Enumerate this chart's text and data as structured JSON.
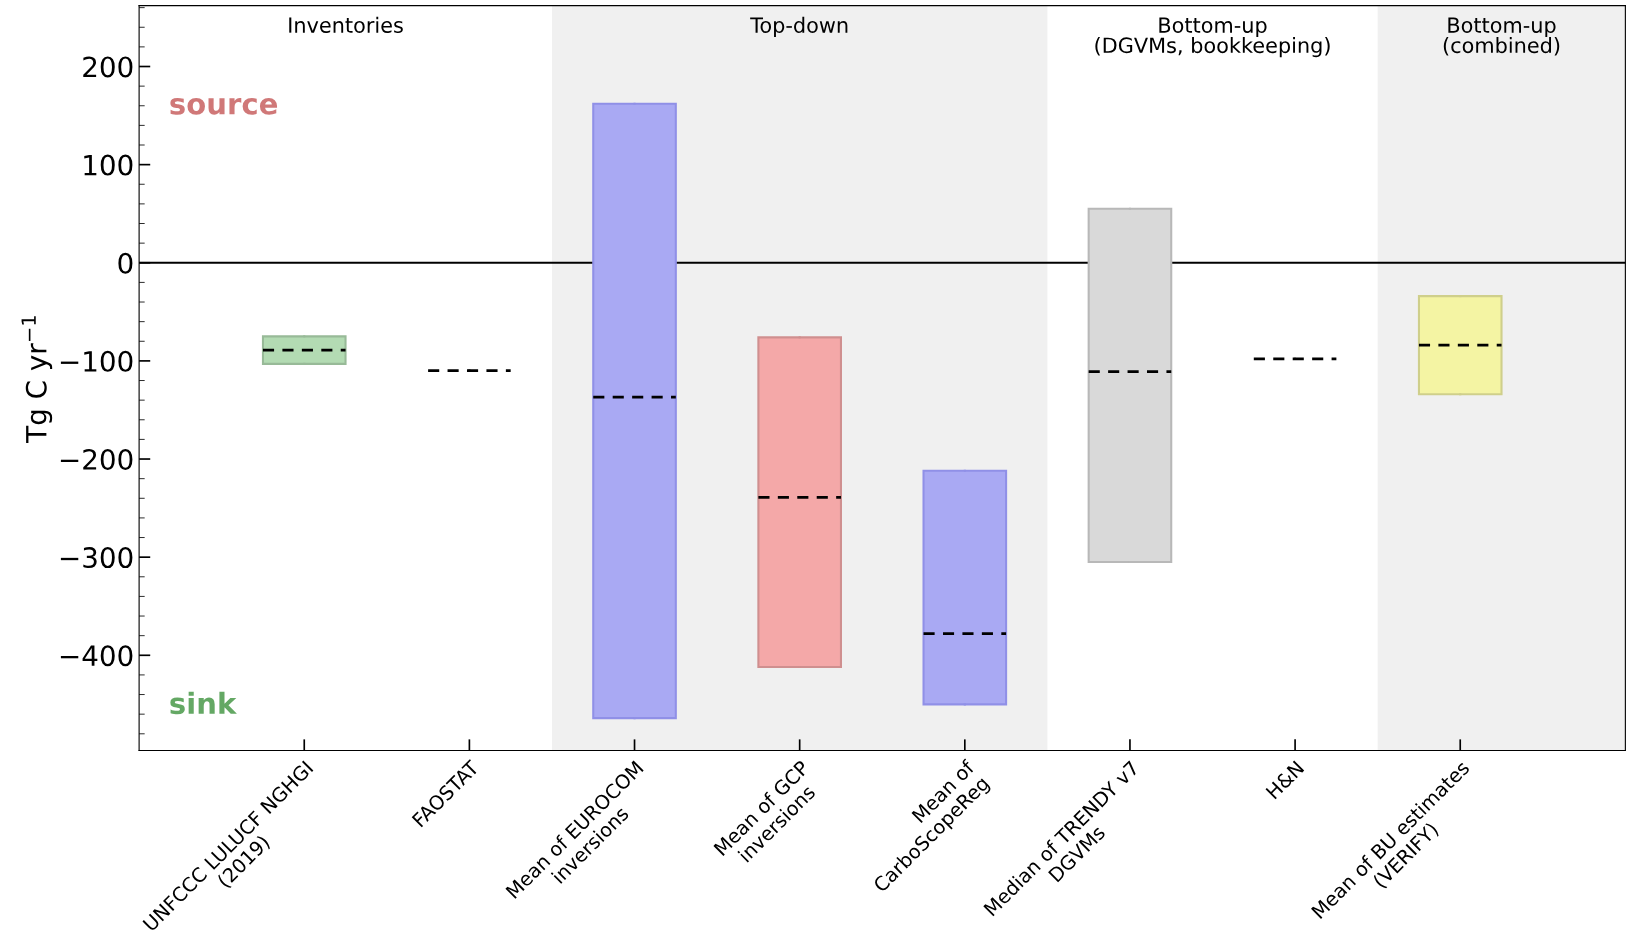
{
  "chart_data": {
    "type": "box",
    "ylabel": "Tg C yr$^{−1}$",
    "categories": [
      "UNFCCC LULUCF NGHGI\n(2019)",
      "FAOSTAT",
      "Mean of EUROCOM\ninversions",
      "Mean of GCP\ninversions",
      "Mean of\nCarboScopeReg",
      "Median of TRENDY v7\nDGVMs",
      "H&N",
      "Mean of BU estimates\n(VERIFY)"
    ],
    "boxes": [
      {
        "low": -103,
        "q1": -103,
        "median": -89,
        "q3": -75,
        "high": -75
      },
      {
        "low": -110,
        "q1": -110,
        "median": -110,
        "q3": -110,
        "high": -110
      },
      {
        "low": -464,
        "q1": -464,
        "median": -137,
        "q3": 162,
        "high": 162
      },
      {
        "low": -412,
        "q1": -412,
        "median": -239,
        "q3": -76,
        "high": -76
      },
      {
        "low": -450,
        "q1": -450,
        "median": -378,
        "q3": -212,
        "high": -212
      },
      {
        "low": -305,
        "q1": -305,
        "median": -111,
        "q3": 55,
        "high": 55
      },
      {
        "low": -98,
        "q1": -98,
        "median": -98,
        "q3": -98,
        "high": -98
      },
      {
        "low": -134,
        "q1": -134,
        "median": -84,
        "q3": -34,
        "high": -34
      }
    ],
    "colors": [
      "#b3dbb3",
      null,
      "#a9a9f3",
      "#f4a8a8",
      "#a9a9f3",
      "#d9d9d9",
      null,
      "#f4f4a3"
    ],
    "line_style": "dashed",
    "ylim": [
      -497,
      262
    ],
    "yticks": [
      -400,
      -300,
      -200,
      -100,
      0,
      100,
      200
    ],
    "grid": false,
    "ref_lines": [
      {
        "axis": "y",
        "value": 0,
        "color": "#000000",
        "line_style": "solid"
      }
    ],
    "annotations": [
      "Inventories",
      "Top-down",
      "Bottom-up\n(DGVMs, bookkeeping)",
      "Bottom-up\n(combined)",
      "source",
      "sink"
    ]
  }
}
